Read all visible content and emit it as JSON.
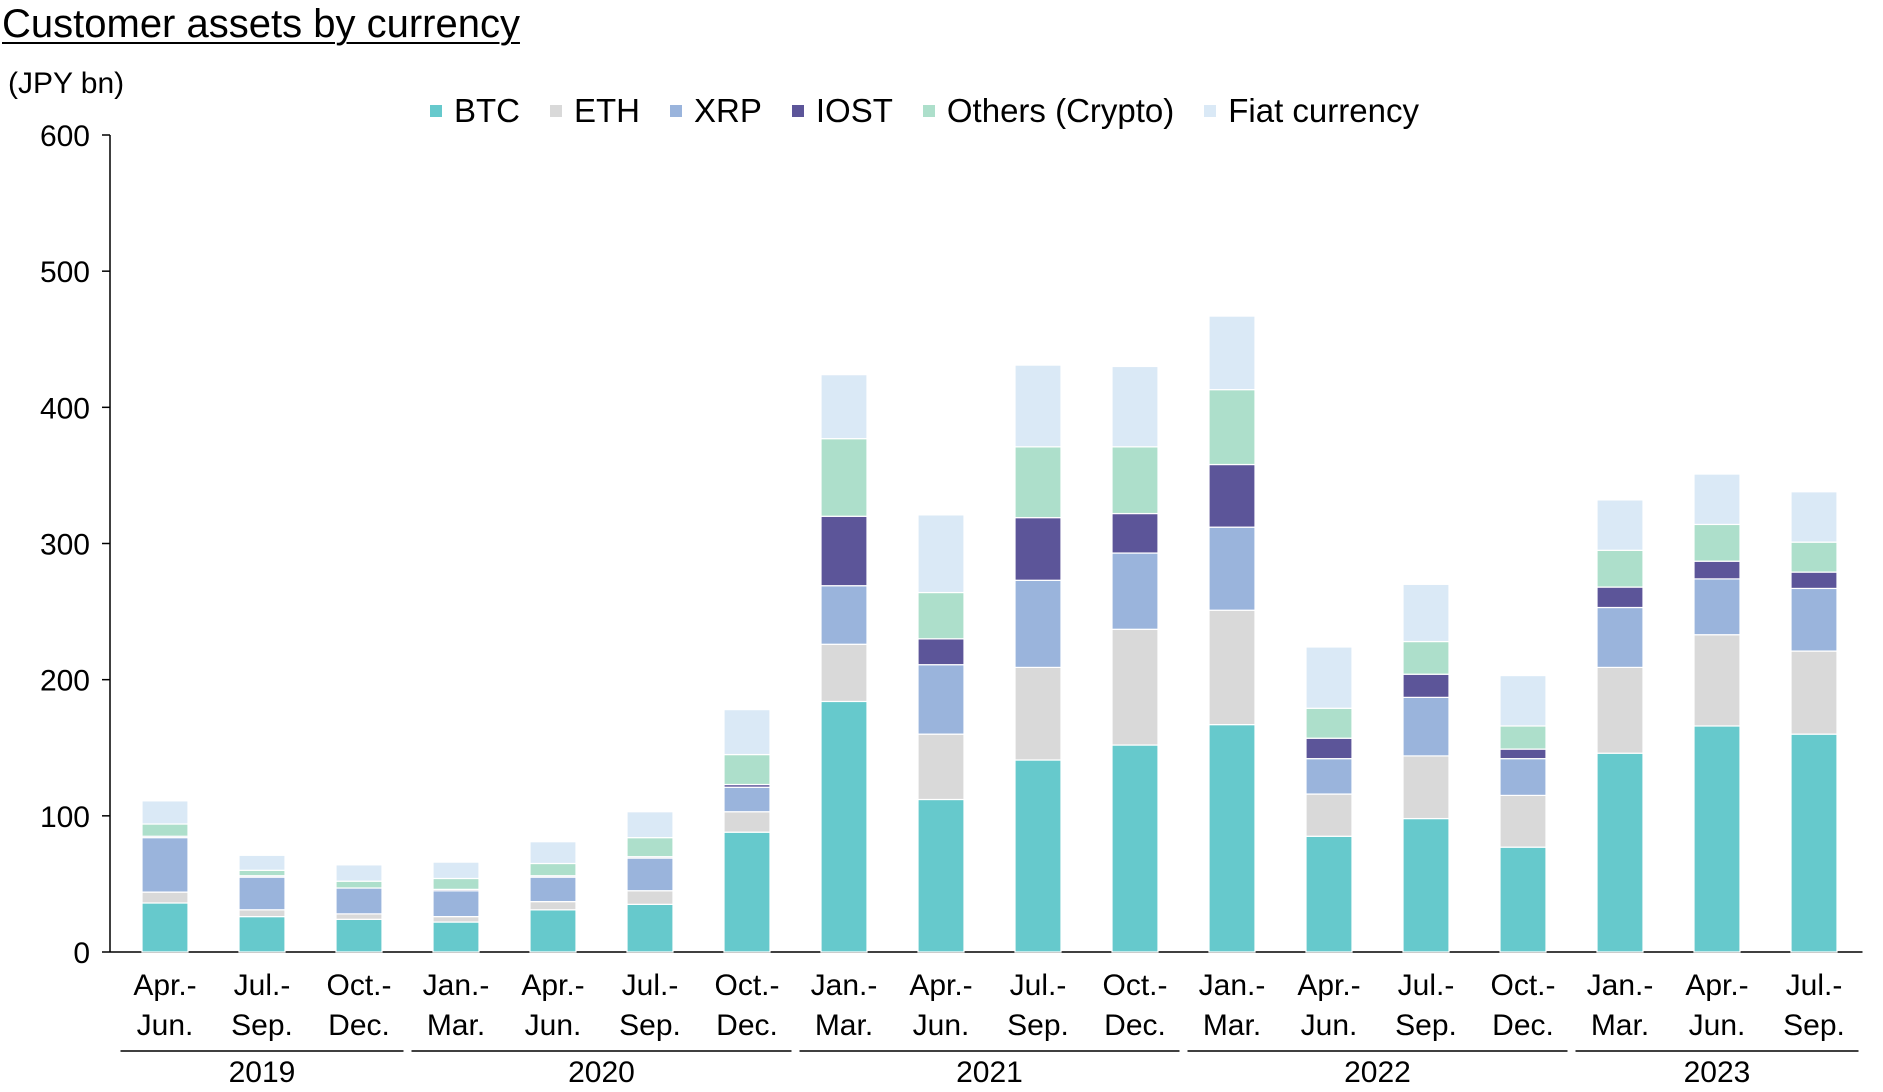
{
  "chart_data": {
    "type": "bar",
    "stacked": true,
    "title": "Customer assets by currency",
    "ylabel": "(JPY bn)",
    "ylim": [
      0,
      600
    ],
    "yticks": [
      0,
      100,
      200,
      300,
      400,
      500,
      600
    ],
    "legend_position": "top",
    "categories": [
      [
        "Apr.-",
        "Jun."
      ],
      [
        "Jul.-",
        "Sep."
      ],
      [
        "Oct.-",
        "Dec."
      ],
      [
        "Jan.-",
        "Mar."
      ],
      [
        "Apr.-",
        "Jun."
      ],
      [
        "Jul.-",
        "Sep."
      ],
      [
        "Oct.-",
        "Dec."
      ],
      [
        "Jan.-",
        "Mar."
      ],
      [
        "Apr.-",
        "Jun."
      ],
      [
        "Jul.-",
        "Sep."
      ],
      [
        "Oct.-",
        "Dec."
      ],
      [
        "Jan.-",
        "Mar."
      ],
      [
        "Apr.-",
        "Jun."
      ],
      [
        "Jul.-",
        "Sep."
      ],
      [
        "Oct.-",
        "Dec."
      ],
      [
        "Jan.-",
        "Mar."
      ],
      [
        "Apr.-",
        "Jun."
      ],
      [
        "Jul.-",
        "Sep."
      ]
    ],
    "year_groups": [
      {
        "label": "2019",
        "start": 0,
        "end": 2
      },
      {
        "label": "2020",
        "start": 3,
        "end": 6
      },
      {
        "label": "2021",
        "start": 7,
        "end": 10
      },
      {
        "label": "2022",
        "start": 11,
        "end": 14
      },
      {
        "label": "2023",
        "start": 15,
        "end": 17
      }
    ],
    "series": [
      {
        "name": "BTC",
        "color": "#66c9cc",
        "values": [
          36,
          26,
          24,
          22,
          31,
          35,
          88,
          184,
          112,
          141,
          152,
          167,
          85,
          98,
          77,
          146,
          166,
          160
        ]
      },
      {
        "name": "ETH",
        "color": "#d9d9d9",
        "values": [
          8,
          5,
          4,
          4,
          6,
          10,
          15,
          42,
          48,
          68,
          85,
          84,
          31,
          46,
          38,
          63,
          67,
          61
        ]
      },
      {
        "name": "XRP",
        "color": "#9ab4dc",
        "values": [
          40,
          24,
          19,
          19,
          18,
          24,
          18,
          43,
          51,
          64,
          56,
          61,
          26,
          43,
          27,
          44,
          41,
          46
        ]
      },
      {
        "name": "IOST",
        "color": "#5c5599",
        "values": [
          1,
          1,
          0,
          1,
          1,
          1,
          2,
          51,
          19,
          46,
          29,
          46,
          15,
          17,
          7,
          15,
          13,
          12
        ]
      },
      {
        "name": "Others (Crypto)",
        "color": "#addfcb",
        "values": [
          9,
          4,
          5,
          8,
          9,
          14,
          22,
          57,
          34,
          52,
          49,
          55,
          22,
          24,
          17,
          27,
          27,
          22
        ]
      },
      {
        "name": "Fiat currency",
        "color": "#dae9f6",
        "values": [
          17,
          11,
          12,
          12,
          16,
          19,
          33,
          47,
          57,
          60,
          59,
          54,
          45,
          42,
          37,
          37,
          37,
          37
        ]
      }
    ]
  }
}
